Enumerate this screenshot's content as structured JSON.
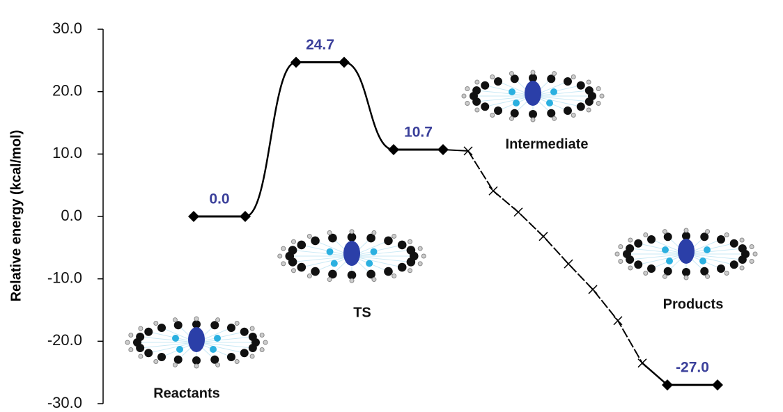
{
  "chart_data": {
    "type": "energy-profile",
    "ylabel": "Relative energy (kcal/mol)",
    "ylim": [
      -30,
      30
    ],
    "yticks": [
      {
        "value": -30,
        "label": "-30.0"
      },
      {
        "value": -20,
        "label": "-20.0"
      },
      {
        "value": -10,
        "label": "-10.0"
      },
      {
        "value": 0,
        "label": "0.0"
      },
      {
        "value": 10,
        "label": "10.0"
      },
      {
        "value": 20,
        "label": "20.0"
      },
      {
        "value": 30,
        "label": "30.0"
      }
    ],
    "color": "#000000",
    "label_color": "#3a3f9a",
    "levels": [
      {
        "name": "Reactants",
        "value": 0.0,
        "value_label": "0.0"
      },
      {
        "name": "TS",
        "value": 24.7,
        "value_label": "24.7"
      },
      {
        "name": "Intermediate",
        "value": 10.7,
        "value_label": "10.7"
      },
      {
        "name": "Products",
        "value": -27.0,
        "value_label": "-27.0"
      }
    ],
    "scan": {
      "values": [
        10.5,
        4.1,
        0.7,
        -3.2,
        -7.6,
        -11.7,
        -16.7,
        -23.5
      ]
    }
  }
}
